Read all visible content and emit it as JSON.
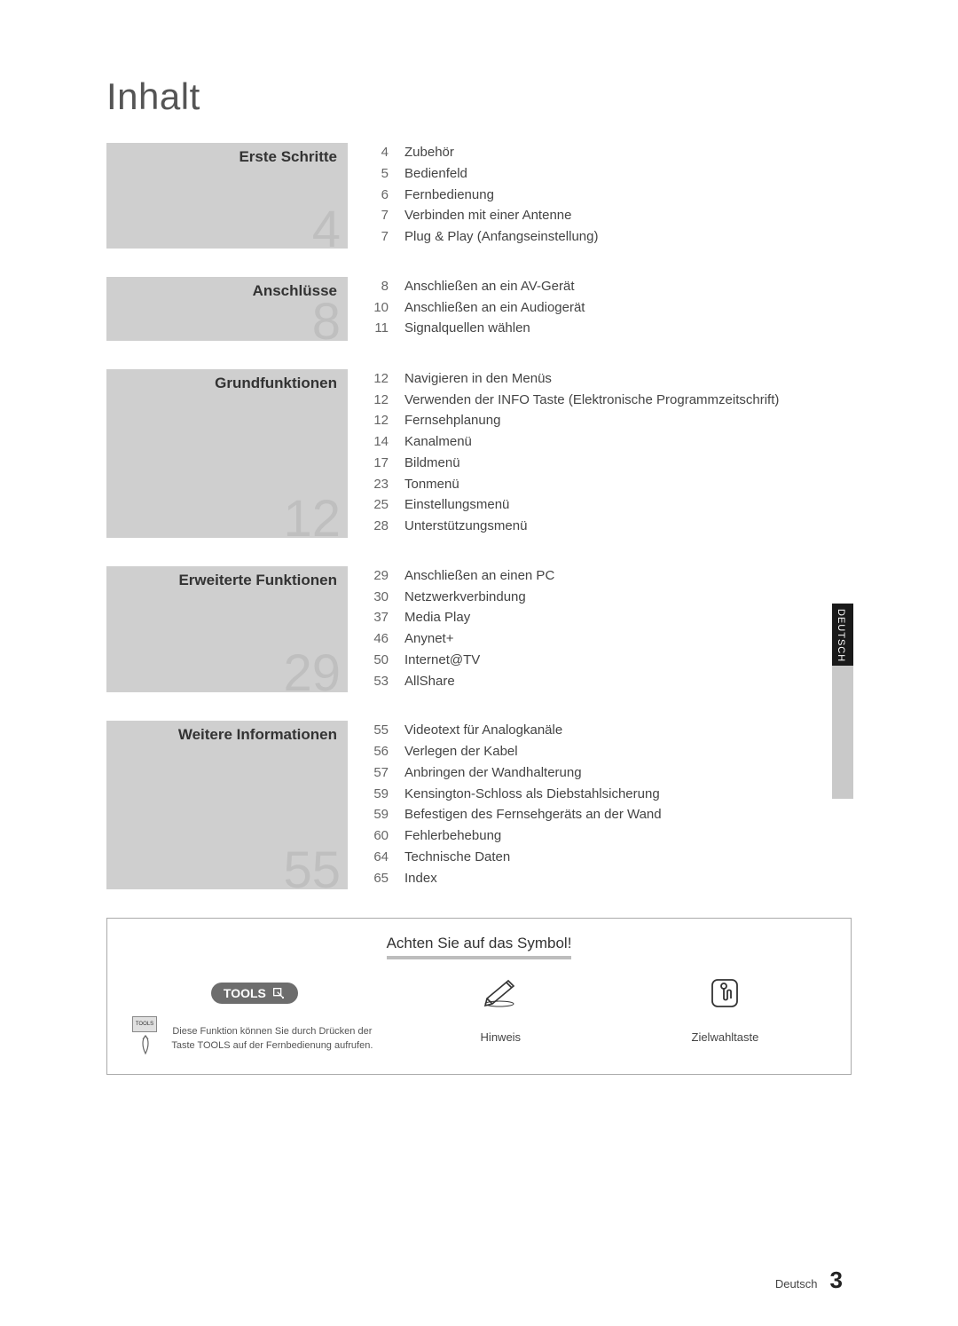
{
  "page_title": "Inhalt",
  "sections": [
    {
      "title": "Erste Schritte",
      "number": "4",
      "entries": [
        {
          "page": "4",
          "title": "Zubehör"
        },
        {
          "page": "5",
          "title": "Bedienfeld"
        },
        {
          "page": "6",
          "title": "Fernbedienung"
        },
        {
          "page": "7",
          "title": "Verbinden mit einer Antenne"
        },
        {
          "page": "7",
          "title": "Plug & Play (Anfangseinstellung)"
        }
      ]
    },
    {
      "title": "Anschlüsse",
      "number": "8",
      "entries": [
        {
          "page": "8",
          "title": "Anschließen an ein AV-Gerät"
        },
        {
          "page": "10",
          "title": "Anschließen an ein Audiogerät"
        },
        {
          "page": "11",
          "title": "Signalquellen wählen"
        }
      ]
    },
    {
      "title": "Grundfunktionen",
      "number": "12",
      "entries": [
        {
          "page": "12",
          "title": "Navigieren in den Menüs"
        },
        {
          "page": "12",
          "title": "Verwenden der INFO Taste (Elektronische Programmzeitschrift)"
        },
        {
          "page": "12",
          "title": "Fernsehplanung"
        },
        {
          "page": "14",
          "title": "Kanalmenü"
        },
        {
          "page": "17",
          "title": "Bildmenü"
        },
        {
          "page": "23",
          "title": "Tonmenü"
        },
        {
          "page": "25",
          "title": "Einstellungsmenü"
        },
        {
          "page": "28",
          "title": "Unterstützungsmenü"
        }
      ]
    },
    {
      "title": "Erweiterte Funktionen",
      "number": "29",
      "entries": [
        {
          "page": "29",
          "title": "Anschließen an einen PC"
        },
        {
          "page": "30",
          "title": "Netzwerkverbindung"
        },
        {
          "page": "37",
          "title": "Media Play"
        },
        {
          "page": "46",
          "title": "Anynet+"
        },
        {
          "page": "50",
          "title": "Internet@TV"
        },
        {
          "page": "53",
          "title": "AllShare"
        }
      ]
    },
    {
      "title": "Weitere Informationen",
      "number": "55",
      "entries": [
        {
          "page": "55",
          "title": "Videotext für Analogkanäle"
        },
        {
          "page": "56",
          "title": "Verlegen der Kabel"
        },
        {
          "page": "57",
          "title": "Anbringen der Wandhalterung"
        },
        {
          "page": "59",
          "title": "Kensington-Schloss als Diebstahlsicherung"
        },
        {
          "page": "59",
          "title": "Befestigen des Fernsehgeräts an der Wand"
        },
        {
          "page": "60",
          "title": "Fehlerbehebung"
        },
        {
          "page": "64",
          "title": "Technische Daten"
        },
        {
          "page": "65",
          "title": "Index"
        }
      ]
    }
  ],
  "language_tab": "DEUTSCH",
  "symbol_box": {
    "heading": "Achten Sie auf das Symbol!",
    "tools_label": "TOOLS",
    "tools_desc": "Diese Funktion können Sie durch Drücken der Taste TOOLS auf der Fernbedienung aufrufen.",
    "note_label": "Hinweis",
    "onetouch_label": "Zielwahltaste",
    "remote_btn": "TOOLS"
  },
  "footer": {
    "lang": "Deutsch",
    "page": "3"
  },
  "colors": {
    "section_bg": "#cfcfcf",
    "section_number": "#bfbfbf",
    "text": "#333333",
    "tools_badge_bg": "#6d6d6d",
    "heading_underline": "#bdbdbd",
    "tab_dark": "#1a1a1a",
    "tab_light": "#c9c9c9"
  }
}
